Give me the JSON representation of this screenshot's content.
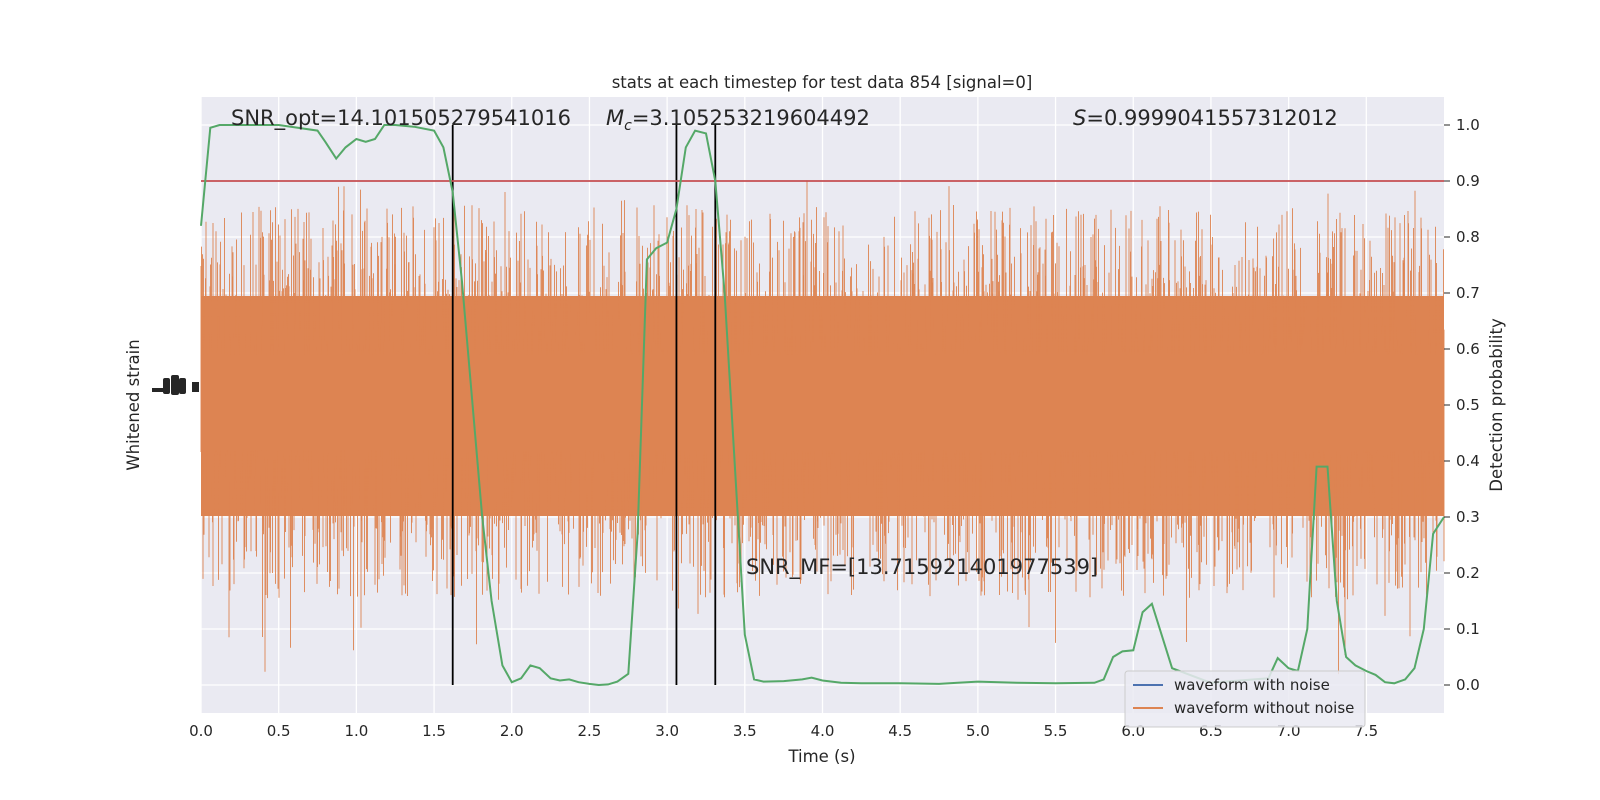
{
  "chart_data": {
    "type": "line",
    "title": "stats at each timestep for test data 854 [signal=0]",
    "xlabel": "Time (s)",
    "ylabel_left": "Whitened strain",
    "ylabel_right": "Detection probability",
    "xlim": [
      0,
      8
    ],
    "ylim_right": [
      -0.05,
      1.05
    ],
    "x_ticks": [
      "0.0",
      "0.5",
      "1.0",
      "1.5",
      "2.0",
      "2.5",
      "3.0",
      "3.5",
      "4.0",
      "4.5",
      "5.0",
      "5.5",
      "6.0",
      "6.5",
      "7.0",
      "7.5"
    ],
    "y_ticks_right": [
      "0.0",
      "0.1",
      "0.2",
      "0.3",
      "0.4",
      "0.5",
      "0.6",
      "0.7",
      "0.8",
      "0.9",
      "1.0"
    ],
    "grid": true,
    "legend_position": "lower right",
    "annotations": {
      "snr_opt": "SNR_opt=14.101505279541016",
      "mc_symbol": "M",
      "mc_sub": "c",
      "mc_value": "=3.105253219604492",
      "s_symbol": "S",
      "s_value": "=0.9999041557312012",
      "snr_mf": "SNR_MF=[13.715921401977539]"
    },
    "threshold": 0.9,
    "vertical_lines_x": [
      1.62,
      3.06,
      3.31
    ],
    "series": [
      {
        "name": "waveform with noise",
        "color": "#4c72b0"
      },
      {
        "name": "waveform without noise",
        "color": "#dd8452"
      },
      {
        "color": "#55a868",
        "x": [
          0.0,
          0.06,
          0.12,
          0.25,
          0.5,
          0.75,
          0.8,
          0.87,
          0.93,
          1.0,
          1.06,
          1.12,
          1.18,
          1.25,
          1.37,
          1.5,
          1.56,
          1.62,
          1.68,
          1.81,
          1.87,
          1.94,
          2.0,
          2.06,
          2.12,
          2.18,
          2.25,
          2.31,
          2.37,
          2.43,
          2.5,
          2.56,
          2.62,
          2.68,
          2.75,
          2.81,
          2.87,
          2.93,
          3.0,
          3.06,
          3.12,
          3.18,
          3.25,
          3.31,
          3.37,
          3.43,
          3.5,
          3.56,
          3.62,
          3.75,
          3.87,
          3.93,
          4.0,
          4.12,
          4.25,
          4.5,
          4.75,
          4.87,
          5.0,
          5.25,
          5.5,
          5.75,
          5.81,
          5.87,
          5.93,
          6.0,
          6.06,
          6.12,
          6.25,
          6.5,
          6.87,
          6.93,
          7.0,
          7.06,
          7.12,
          7.18,
          7.25,
          7.31,
          7.37,
          7.43,
          7.5,
          7.56,
          7.62,
          7.68,
          7.75,
          7.81,
          7.87,
          7.93,
          8.0
        ],
        "y": [
          0.82,
          0.995,
          1.0,
          1.0,
          1.0,
          0.99,
          0.97,
          0.94,
          0.96,
          0.975,
          0.97,
          0.975,
          1.0,
          1.0,
          0.997,
          0.99,
          0.96,
          0.88,
          0.72,
          0.3,
          0.15,
          0.035,
          0.005,
          0.012,
          0.035,
          0.03,
          0.012,
          0.008,
          0.01,
          0.005,
          0.002,
          0.0,
          0.001,
          0.006,
          0.02,
          0.27,
          0.76,
          0.78,
          0.79,
          0.85,
          0.96,
          0.99,
          0.985,
          0.9,
          0.7,
          0.42,
          0.09,
          0.01,
          0.006,
          0.007,
          0.01,
          0.013,
          0.008,
          0.004,
          0.003,
          0.003,
          0.002,
          0.004,
          0.006,
          0.004,
          0.003,
          0.004,
          0.01,
          0.05,
          0.06,
          0.062,
          0.13,
          0.145,
          0.03,
          0.004,
          0.012,
          0.048,
          0.03,
          0.025,
          0.1,
          0.39,
          0.39,
          0.15,
          0.05,
          0.035,
          0.025,
          0.018,
          0.005,
          0.003,
          0.01,
          0.03,
          0.1,
          0.27,
          0.3
        ]
      }
    ]
  }
}
